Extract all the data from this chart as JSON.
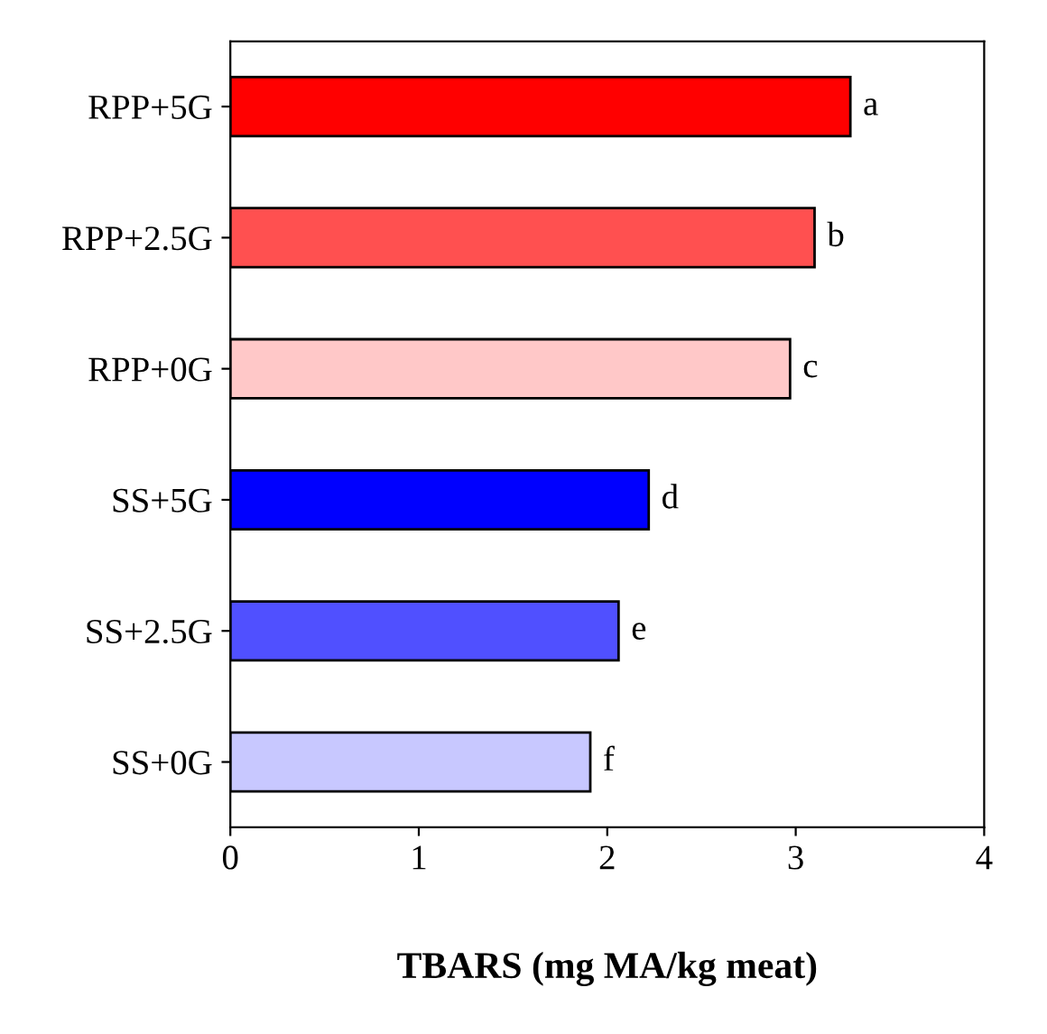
{
  "chart_data": {
    "type": "bar",
    "orientation": "horizontal",
    "xlabel": "TBARS (mg MA/kg meat)",
    "categories": [
      "RPP+5G",
      "RPP+2.5G",
      "RPP+0G",
      "SS+5G",
      "SS+2.5G",
      "SS+0G"
    ],
    "values": [
      3.29,
      3.1,
      2.97,
      2.22,
      2.06,
      1.91
    ],
    "colors": [
      "#ff0000",
      "#ff5050",
      "#ffc8c8",
      "#0000ff",
      "#5050ff",
      "#c8c8ff"
    ],
    "value_labels": [
      "a",
      "b",
      "c",
      "d",
      "e",
      "f"
    ],
    "xlim": [
      0,
      4
    ],
    "xticks": [
      0,
      1,
      2,
      3,
      4
    ],
    "grid": false,
    "legend": false
  }
}
